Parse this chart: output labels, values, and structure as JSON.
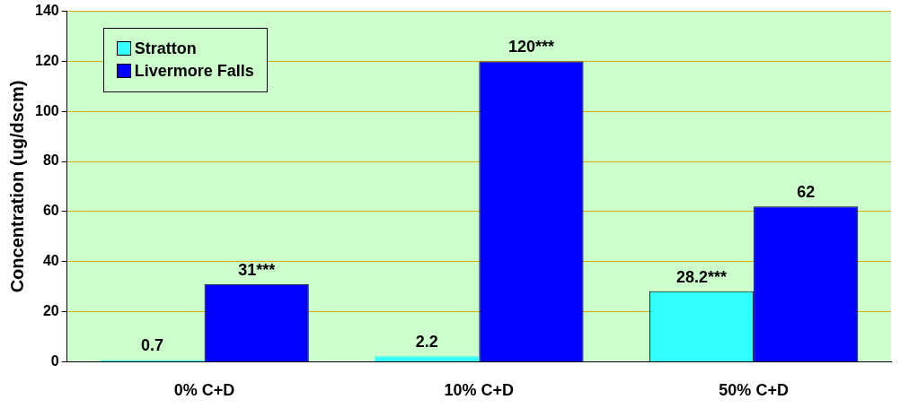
{
  "chart_data": {
    "type": "bar",
    "ylabel": "Concentration (ug/dscm)",
    "categories": [
      "0% C+D",
      "10% C+D",
      "50% C+D"
    ],
    "series": [
      {
        "name": "Stratton",
        "color": "#33ffff",
        "values": [
          0.7,
          2.2,
          28.2
        ],
        "value_labels": [
          "0.7",
          "2.2",
          "28.2***"
        ]
      },
      {
        "name": "Livermore Falls",
        "color": "#0000ff",
        "values": [
          31,
          120,
          62
        ],
        "value_labels": [
          "31***",
          "120***",
          "62"
        ]
      }
    ],
    "ylim": [
      0,
      140
    ],
    "yticks": [
      0,
      20,
      40,
      60,
      80,
      100,
      120,
      140
    ],
    "grid": "y",
    "legend": "top left"
  }
}
